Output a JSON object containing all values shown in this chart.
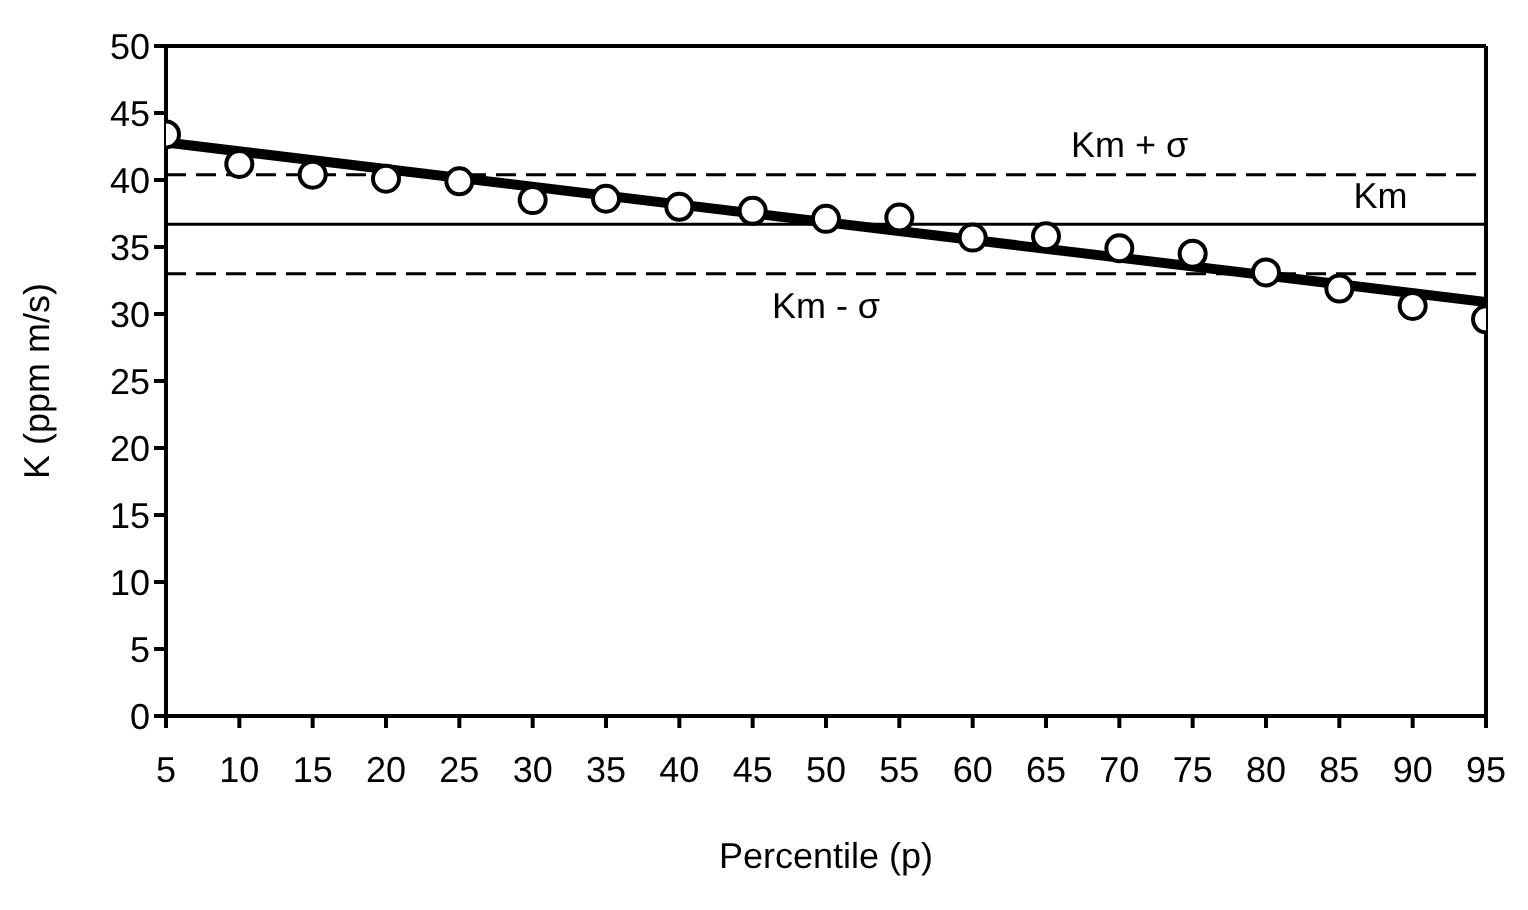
{
  "chart_data": {
    "type": "scatter",
    "xlabel": "Percentile (p)",
    "ylabel": "K (ppm m/s)",
    "x": [
      5,
      10,
      15,
      20,
      25,
      30,
      35,
      40,
      45,
      50,
      55,
      60,
      65,
      70,
      75,
      80,
      85,
      90,
      95
    ],
    "series": [
      {
        "color": "#000000",
        "marker": "circle",
        "values": [
          43.4,
          41.2,
          40.4,
          40.1,
          39.9,
          38.5,
          38.6,
          38.0,
          37.7,
          37.1,
          37.2,
          35.7,
          35.8,
          34.9,
          34.5,
          33.1,
          31.9,
          30.6,
          29.6
        ]
      },
      {
        "type": "line",
        "color": "#000000",
        "marker": "none",
        "line_style": "solid",
        "x": [
          5,
          95
        ],
        "values": [
          42.8,
          30.9
        ]
      }
    ],
    "ref_lines": [
      {
        "axis": "y",
        "value": 40.4,
        "color": "#000000",
        "line_style": "dashed",
        "label": "Km + σ"
      },
      {
        "axis": "y",
        "value": 36.7,
        "color": "#000000",
        "line_style": "solid",
        "label": "Km"
      },
      {
        "axis": "y",
        "value": 33.0,
        "color": "#000000",
        "line_style": "dashed",
        "label": "Km - σ"
      }
    ],
    "xlim": [
      5,
      95
    ],
    "xticks": [
      5,
      10,
      15,
      20,
      25,
      30,
      35,
      40,
      45,
      50,
      55,
      60,
      65,
      70,
      75,
      80,
      85,
      90,
      95
    ],
    "ylim": [
      0,
      50
    ],
    "yticks": [
      0,
      5,
      10,
      15,
      20,
      25,
      30,
      35,
      40,
      45,
      50
    ]
  }
}
